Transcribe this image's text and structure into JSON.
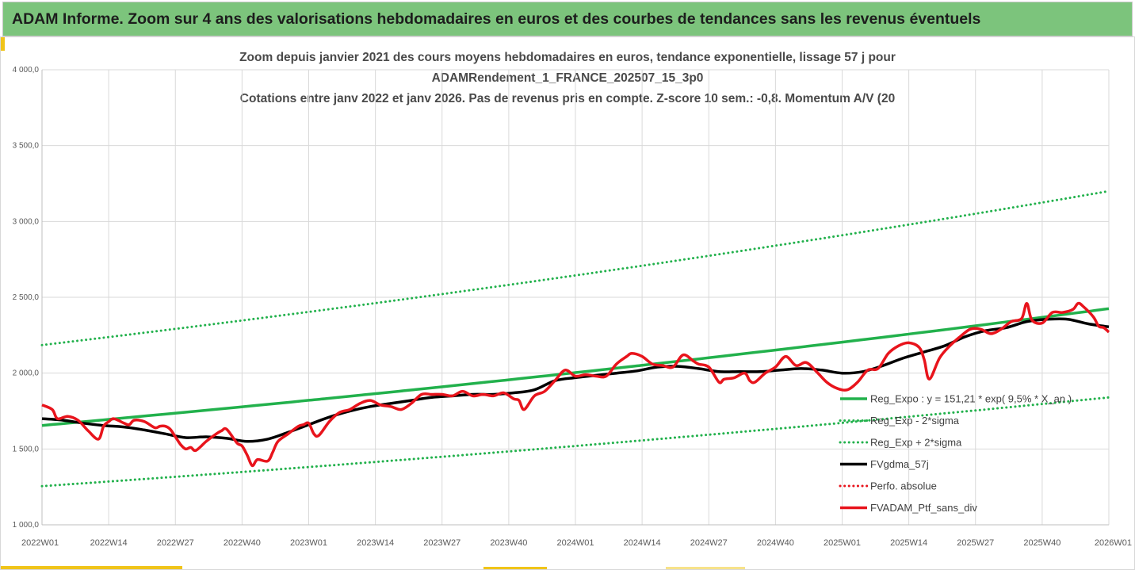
{
  "header": {
    "title": "ADAM Informe. Zoom sur 4 ans des valorisations hebdomadaires en euros et des courbes de tendances sans les revenus éventuels"
  },
  "colors": {
    "header_bg": "#7cc47c",
    "trend": "#22b14c",
    "sigma": "#22b14c",
    "smooth": "#000000",
    "portfolio": "#e8141c",
    "grid": "#d9d9d9"
  },
  "chart_data": {
    "type": "line",
    "title_lines": [
      "Zoom depuis janvier 2021 des cours moyens hebdomadaires  en euros, tendance exponentielle, lissage 57 j pour",
      "ADAMRendement_1_FRANCE_202507_15_3p0",
      "Cotations entre janv 2022 et janv 2026. Pas de revenus pris en compte. Z-score 10 sem.: -0,8. Momentum  A/V (20"
    ],
    "ylim": [
      1000,
      4000
    ],
    "yticks": [
      "1 000,0",
      "1 500,0",
      "2 000,0",
      "2 500,0",
      "3 000,0",
      "3 500,0",
      "4 000,0"
    ],
    "ytick_values": [
      1000,
      1500,
      2000,
      2500,
      3000,
      3500,
      4000
    ],
    "xlim": [
      0,
      208
    ],
    "xticks": [
      "2022W01",
      "2022W14",
      "2022W27",
      "2022W40",
      "2023W01",
      "2023W14",
      "2023W27",
      "2023W40",
      "2024W01",
      "2024W14",
      "2024W27",
      "2024W40",
      "2025W01",
      "2025W14",
      "2025W27",
      "2025W40",
      "2026W01"
    ],
    "xtick_positions": [
      0,
      13,
      26,
      39,
      52,
      65,
      78,
      91,
      104,
      117,
      130,
      143,
      156,
      169,
      182,
      195,
      208
    ],
    "legend": [
      {
        "name": "Reg_Expo : y = 151,21 * exp( 9,5% * X_an )",
        "style": "solid-thick",
        "color": "#22b14c"
      },
      {
        "name": "Reg_Exp - 2*sigma",
        "style": "dotted",
        "color": "#22b14c"
      },
      {
        "name": "Reg_Exp + 2*sigma",
        "style": "dotted",
        "color": "#22b14c"
      },
      {
        "name": "FVgdma_57j",
        "style": "solid-thick",
        "color": "#000000"
      },
      {
        "name": "Perfo. absolue",
        "style": "dotted",
        "color": "#e8141c"
      },
      {
        "name": "FVADAM_Ptf_sans_div",
        "style": "solid-thick",
        "color": "#e8141c"
      }
    ],
    "series": [
      {
        "name": "Reg_Expo",
        "x": [
          0,
          208
        ],
        "y": [
          1655,
          2425
        ],
        "curve": "exponential"
      },
      {
        "name": "Reg_Exp - 2*sigma",
        "x": [
          0,
          208
        ],
        "y": [
          1255,
          1840
        ],
        "curve": "exponential"
      },
      {
        "name": "Reg_Exp + 2*sigma",
        "x": [
          0,
          208
        ],
        "y": [
          2185,
          3200
        ],
        "curve": "exponential"
      },
      {
        "name": "FVgdma_57j",
        "x": [
          0,
          4,
          8,
          12,
          16,
          20,
          24,
          28,
          32,
          36,
          40,
          44,
          48,
          52,
          56,
          60,
          64,
          68,
          72,
          76,
          80,
          84,
          88,
          92,
          96,
          100,
          104,
          108,
          112,
          116,
          120,
          124,
          128,
          132,
          136,
          140,
          144,
          148,
          152,
          156,
          160,
          164,
          168,
          172,
          176,
          180,
          184,
          188,
          192,
          196,
          200,
          204,
          208
        ],
        "y": [
          1700,
          1690,
          1670,
          1655,
          1645,
          1625,
          1600,
          1575,
          1580,
          1570,
          1550,
          1565,
          1610,
          1660,
          1710,
          1750,
          1780,
          1800,
          1820,
          1840,
          1850,
          1860,
          1860,
          1870,
          1890,
          1950,
          1970,
          1985,
          2000,
          2015,
          2040,
          2045,
          2030,
          2010,
          2010,
          2010,
          2020,
          2030,
          2020,
          2000,
          2010,
          2050,
          2100,
          2140,
          2180,
          2240,
          2280,
          2300,
          2340,
          2355,
          2355,
          2325,
          2305
        ]
      },
      {
        "name": "FVADAM_Ptf_sans_div",
        "x": [
          0,
          2,
          3,
          5,
          7,
          9,
          11,
          12,
          13,
          14,
          16,
          17,
          18,
          20,
          22,
          23,
          24,
          25,
          26,
          27,
          28,
          29,
          30,
          32,
          34,
          35,
          36,
          38,
          39,
          40,
          41,
          42,
          44,
          45,
          46,
          48,
          50,
          51,
          52,
          53,
          54,
          56,
          58,
          60,
          62,
          64,
          66,
          68,
          70,
          72,
          74,
          76,
          78,
          80,
          82,
          84,
          86,
          88,
          90,
          92,
          93,
          94,
          96,
          98,
          100,
          102,
          104,
          106,
          108,
          110,
          112,
          114,
          115,
          117,
          119,
          121,
          123,
          125,
          127,
          128,
          130,
          132,
          133,
          135,
          137,
          138,
          139,
          141,
          143,
          145,
          147,
          149,
          151,
          153,
          155,
          157,
          159,
          161,
          163,
          165,
          167,
          169,
          171,
          172,
          173,
          175,
          177,
          179,
          181,
          183,
          185,
          187,
          189,
          191,
          192,
          193,
          195,
          197,
          199,
          201,
          202,
          203,
          205,
          206,
          207,
          208
        ],
        "y": [
          1790,
          1760,
          1700,
          1715,
          1690,
          1620,
          1565,
          1650,
          1680,
          1700,
          1670,
          1660,
          1690,
          1680,
          1640,
          1650,
          1650,
          1630,
          1580,
          1530,
          1500,
          1510,
          1490,
          1550,
          1600,
          1620,
          1630,
          1540,
          1520,
          1460,
          1390,
          1430,
          1420,
          1480,
          1550,
          1600,
          1650,
          1660,
          1670,
          1600,
          1590,
          1680,
          1740,
          1760,
          1800,
          1820,
          1790,
          1780,
          1760,
          1800,
          1860,
          1860,
          1860,
          1850,
          1880,
          1850,
          1860,
          1850,
          1870,
          1830,
          1820,
          1760,
          1850,
          1880,
          1950,
          2020,
          1980,
          1990,
          1980,
          1980,
          2060,
          2110,
          2130,
          2110,
          2060,
          2050,
          2040,
          2120,
          2080,
          2060,
          2040,
          1940,
          1960,
          1970,
          2000,
          1950,
          1940,
          2000,
          2040,
          2110,
          2050,
          2070,
          2010,
          1940,
          1900,
          1890,
          1940,
          2020,
          2030,
          2130,
          2180,
          2200,
          2170,
          2090,
          1960,
          2100,
          2180,
          2240,
          2290,
          2290,
          2260,
          2290,
          2340,
          2360,
          2460,
          2350,
          2330,
          2400,
          2400,
          2420,
          2460,
          2440,
          2370,
          2310,
          2300,
          2270
        ]
      }
    ]
  }
}
